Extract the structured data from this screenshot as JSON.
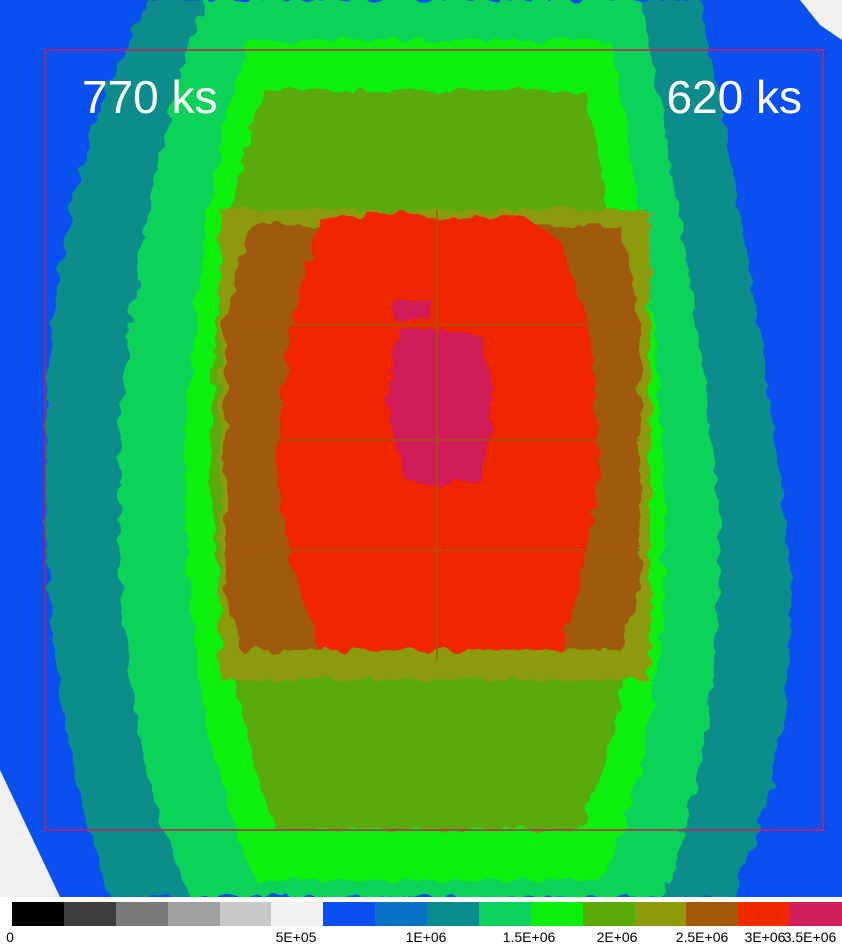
{
  "image": {
    "labels": {
      "left": "770 ks",
      "right": "620 ks"
    },
    "colorbar": {
      "colors": [
        "#000000",
        "#3d3d3d",
        "#7a7a7a",
        "#a0a0a0",
        "#c8c8c8",
        "#f2f2f2",
        "#0a50f0",
        "#0a73c8",
        "#0a8c8c",
        "#0ad25a",
        "#0af00a",
        "#5aaa0a",
        "#8c9b0a",
        "#a05a0a",
        "#f02800",
        "#d21e5a"
      ],
      "ticks": [
        "0",
        "5E+05",
        "1E+06",
        "1.5E+06",
        "2E+06",
        "2.5E+06",
        "3E+06",
        "3.5E+06"
      ]
    }
  }
}
